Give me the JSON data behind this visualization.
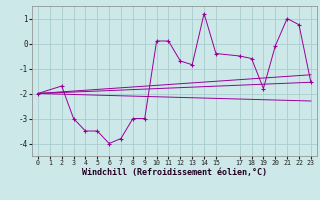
{
  "xlabel": "Windchill (Refroidissement éolien,°C)",
  "bg_color": "#cce8e8",
  "grid_color": "#aacccc",
  "line_color": "#990099",
  "ylim": [
    -4.5,
    1.5
  ],
  "xlim": [
    -0.5,
    23.5
  ],
  "yticks": [
    -4,
    -3,
    -2,
    -1,
    0,
    1
  ],
  "xticks": [
    0,
    1,
    2,
    3,
    4,
    5,
    6,
    7,
    8,
    9,
    10,
    11,
    12,
    13,
    14,
    15,
    17,
    18,
    19,
    20,
    21,
    22,
    23
  ],
  "series1_x": [
    0,
    2,
    3,
    4,
    5,
    6,
    7,
    8,
    9,
    10,
    11,
    12,
    13,
    14,
    15,
    17,
    18,
    19,
    20,
    21,
    22,
    23
  ],
  "series1_y": [
    -2.0,
    -1.7,
    -3.0,
    -3.5,
    -3.5,
    -4.0,
    -3.8,
    -3.0,
    -3.0,
    0.1,
    0.1,
    -0.7,
    -0.85,
    1.2,
    -0.4,
    -0.5,
    -0.6,
    -1.8,
    -0.1,
    1.0,
    0.75,
    -1.55
  ],
  "series2_x": [
    0,
    23
  ],
  "series2_y": [
    -2.0,
    -1.55
  ],
  "series3_x": [
    0,
    23
  ],
  "series3_y": [
    -2.0,
    -2.3
  ],
  "series4_x": [
    0,
    23
  ],
  "series4_y": [
    -2.0,
    -1.25
  ]
}
